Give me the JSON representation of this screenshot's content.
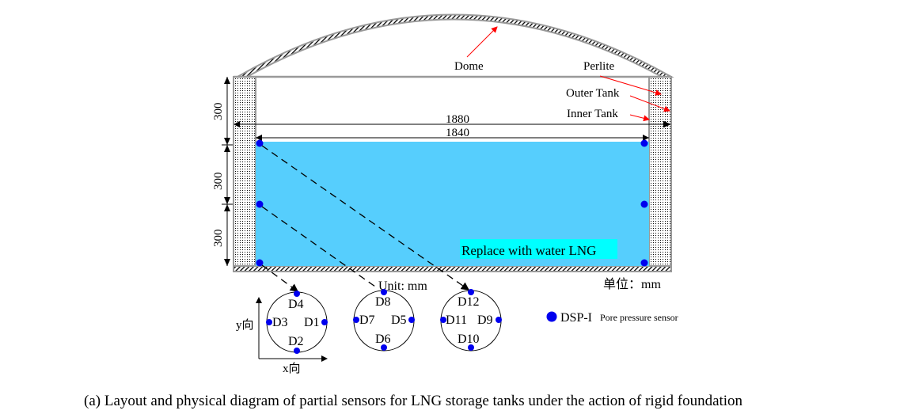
{
  "labels": {
    "dome": "Dome",
    "perlite": "Perlite",
    "outer_tank": "Outer Tank",
    "inner_tank": "Inner Tank",
    "dim_outer": "1880",
    "dim_inner": "1840",
    "dim_h1": "300",
    "dim_h2": "300",
    "dim_h3": "300",
    "water_label": "Replace with water LNG",
    "unit_en": "Unit: mm",
    "unit_cn": "单位：mm",
    "y_axis": "y向",
    "x_axis": "x向",
    "legend_main": "DSP-I",
    "legend_sub": "Pore pressure sensor"
  },
  "sensors": [
    "D1",
    "D2",
    "D3",
    "D4",
    "D5",
    "D6",
    "D7",
    "D8",
    "D9",
    "D10",
    "D11",
    "D12"
  ],
  "caption": "(a)  Layout and physical diagram of partial sensors for LNG storage tanks under the action of rigid foundation",
  "colors": {
    "water": "#56CEFD",
    "sensor": "#0000EE",
    "label_bg": "#00FFFF",
    "arrow_red": "#FF0000",
    "wall": "#999999"
  }
}
